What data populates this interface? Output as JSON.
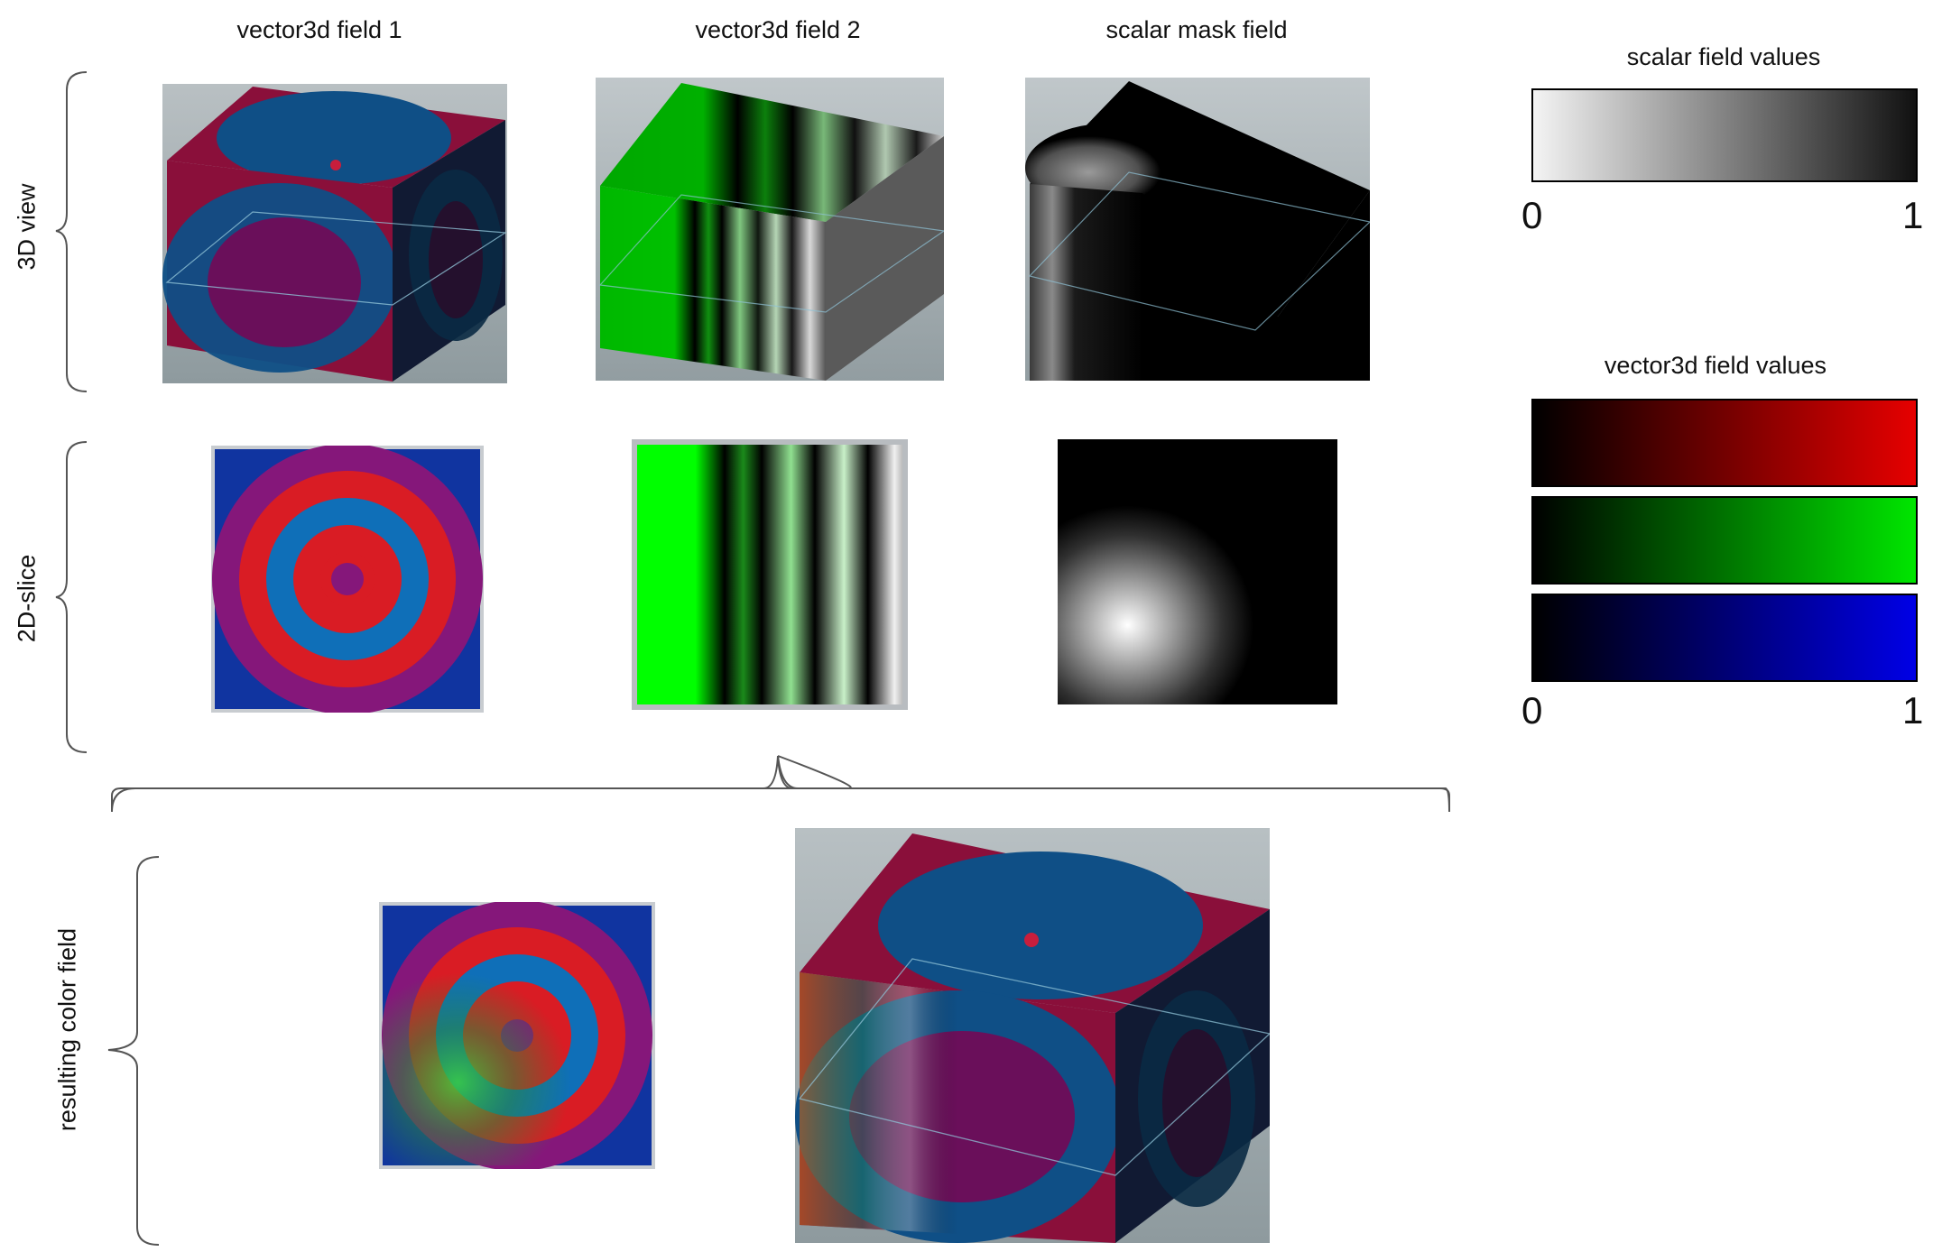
{
  "columns": {
    "field1": "vector3d field 1",
    "field2": "vector3d field 2",
    "mask": "scalar mask field"
  },
  "rows": {
    "view3d": "3D view",
    "slice2d": "2D-slice",
    "result": "resulting color field"
  },
  "legend_scalar": {
    "title": "scalar field values",
    "min": "0",
    "max": "1"
  },
  "legend_vector": {
    "title": "vector3d field values",
    "min": "0",
    "max": "1"
  },
  "colors": {
    "red_bar_end": "#e60000",
    "green_bar_end": "#00e600",
    "blue_bar_end": "#0000e6",
    "bg_gray": "#9aa4a8"
  }
}
